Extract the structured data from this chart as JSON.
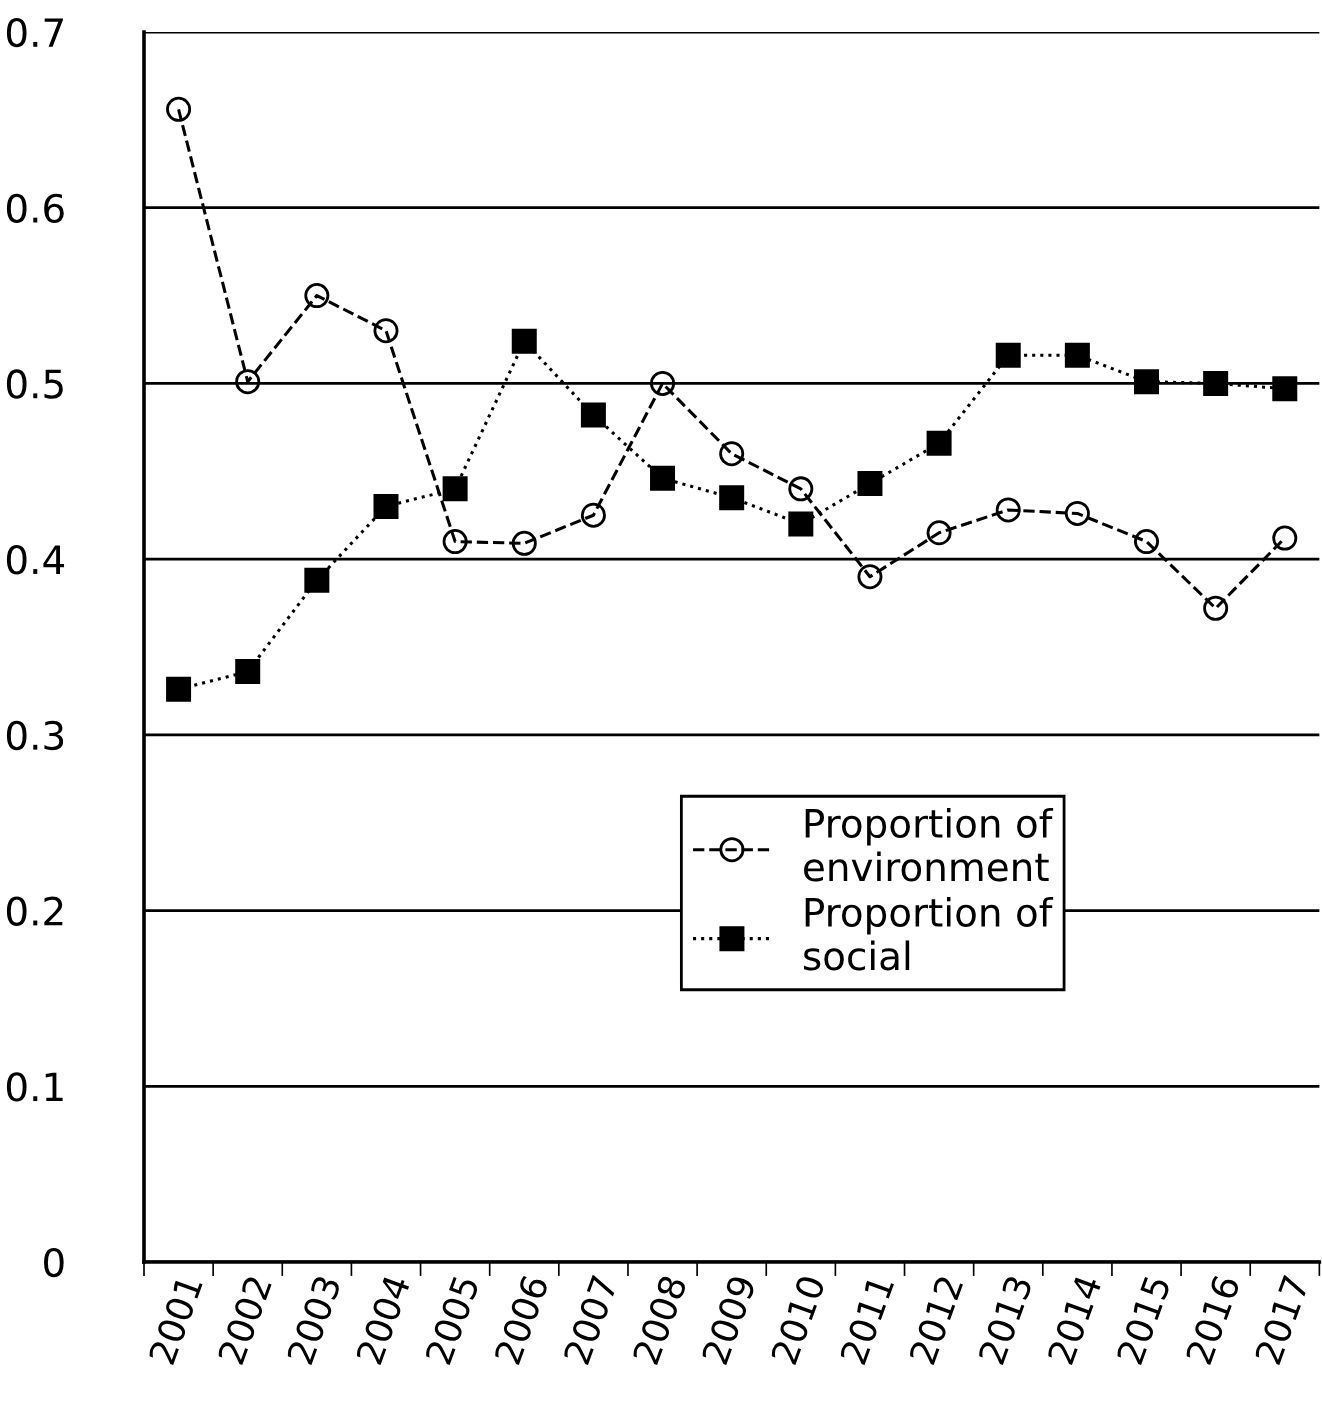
{
  "chart_data": {
    "type": "line",
    "categories": [
      "2001",
      "2002",
      "2003",
      "2004",
      "2005",
      "2006",
      "2007",
      "2008",
      "2009",
      "2010",
      "2011",
      "2012",
      "2013",
      "2014",
      "2015",
      "2016",
      "2017"
    ],
    "series": [
      {
        "name": "Proportion of\nenvironment",
        "color": "#000000",
        "marker": "circle",
        "line_style": "dashed",
        "values": [
          0.656,
          0.501,
          0.55,
          0.53,
          0.41,
          0.409,
          0.425,
          0.5,
          0.46,
          0.44,
          0.39,
          0.415,
          0.428,
          0.426,
          0.41,
          0.372,
          0.412
        ]
      },
      {
        "name": "Proportion of\nsocial",
        "color": "#000000",
        "marker": "square",
        "line_style": "dotted",
        "values": [
          0.326,
          0.336,
          0.388,
          0.43,
          0.44,
          0.524,
          0.482,
          0.446,
          0.435,
          0.42,
          0.443,
          0.466,
          0.516,
          0.516,
          0.501,
          0.5,
          0.497
        ]
      }
    ],
    "ylim": [
      0,
      0.7
    ],
    "yticks": [
      0,
      0.1,
      0.2,
      0.3,
      0.4,
      0.5,
      0.6,
      0.7
    ],
    "grid": "y",
    "legend": "center"
  }
}
